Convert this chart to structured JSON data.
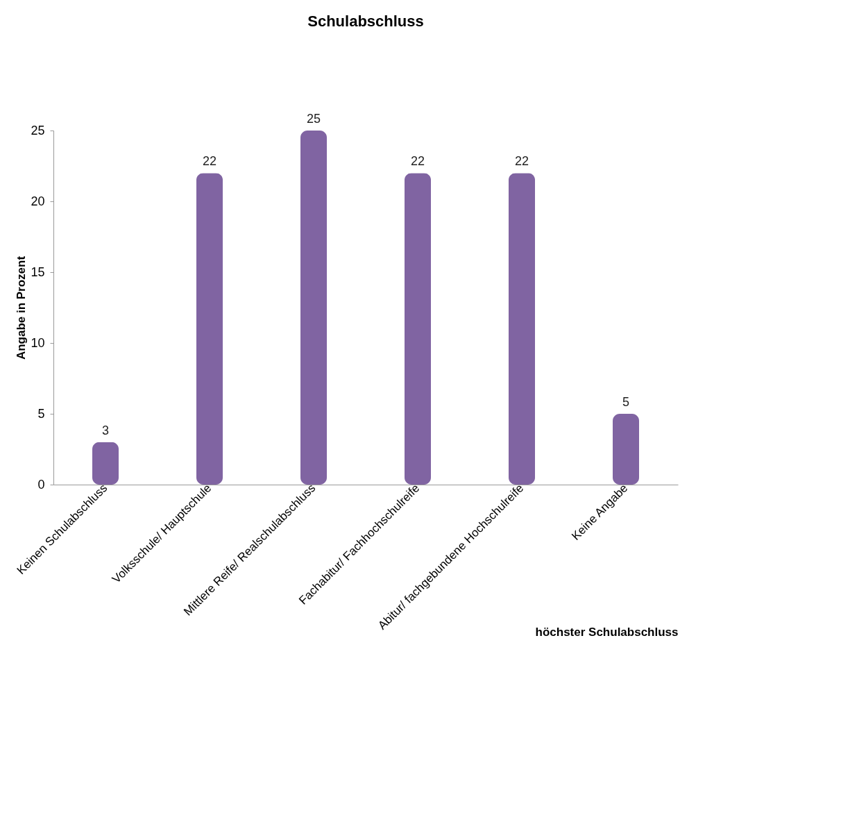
{
  "chart_data": {
    "type": "bar",
    "title": "Schulabschluss",
    "xlabel": "höchster Schulabschluss",
    "ylabel": "Angabe in Prozent",
    "categories": [
      "Keinen Schulabschluss",
      "Volksschule/ Hauptschule",
      "Mittlere Reife/ Realschulabschluss",
      "Fachabitur/ Fachhochschulreife",
      "Abitur/ fachgebundene Hochschulreife",
      "Keine Angabe"
    ],
    "values": [
      3,
      22,
      25,
      22,
      22,
      5
    ],
    "value_labels": [
      "3",
      "22",
      "25",
      "22",
      "22",
      "5"
    ],
    "color": "#8064a2",
    "ylim": [
      0,
      25
    ],
    "yticks": [
      0,
      5,
      10,
      15,
      20,
      25
    ],
    "grid": false
  }
}
